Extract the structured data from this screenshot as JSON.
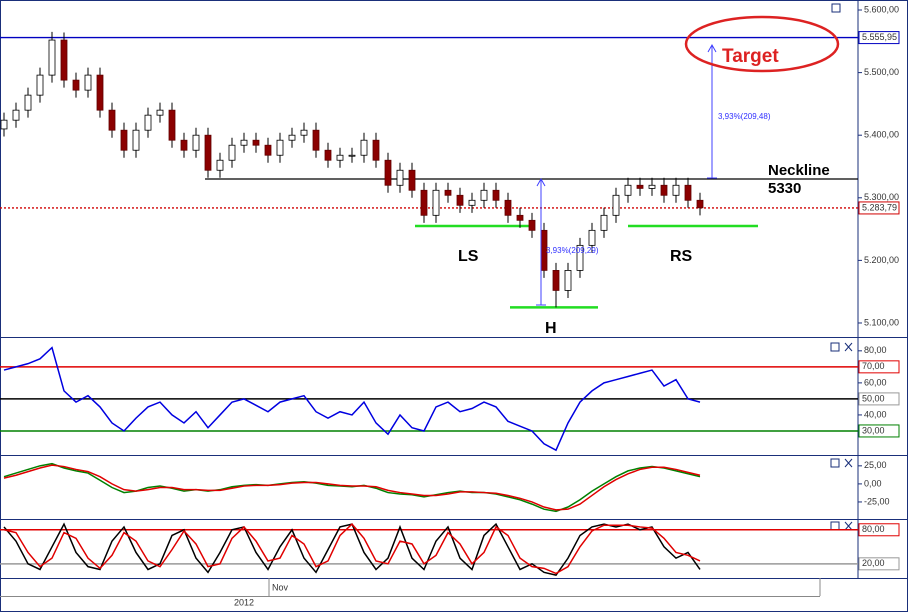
{
  "chart_data": [
    {
      "type": "candlestick",
      "open": [
        5410,
        5424,
        5440,
        5464,
        5496,
        5552,
        5488,
        5472,
        5496,
        5440,
        5408,
        5376,
        5408,
        5432,
        5440,
        5392,
        5376,
        5400,
        5344,
        5360,
        5384,
        5392,
        5384,
        5368,
        5392,
        5400,
        5408,
        5376,
        5360,
        5368,
        5368,
        5392,
        5360,
        5320,
        5344,
        5312,
        5272,
        5312,
        5304,
        5288,
        5296,
        5312,
        5296,
        5272,
        5264,
        5248,
        5184,
        5152,
        5184,
        5224,
        5248,
        5272,
        5304,
        5320,
        5315,
        5320,
        5304,
        5320,
        5296
      ],
      "high": [
        5436,
        5452,
        5476,
        5508,
        5565,
        5564,
        5500,
        5508,
        5508,
        5452,
        5420,
        5420,
        5444,
        5452,
        5452,
        5404,
        5412,
        5412,
        5372,
        5396,
        5404,
        5404,
        5396,
        5404,
        5412,
        5420,
        5420,
        5388,
        5380,
        5380,
        5404,
        5404,
        5372,
        5356,
        5356,
        5324,
        5324,
        5324,
        5316,
        5308,
        5324,
        5324,
        5308,
        5284,
        5276,
        5260,
        5196,
        5196,
        5236,
        5260,
        5284,
        5316,
        5332,
        5332,
        5332,
        5332,
        5332,
        5332,
        5308
      ],
      "low": [
        5398,
        5412,
        5428,
        5452,
        5484,
        5476,
        5460,
        5460,
        5428,
        5396,
        5364,
        5364,
        5396,
        5420,
        5380,
        5364,
        5364,
        5332,
        5332,
        5348,
        5372,
        5372,
        5356,
        5356,
        5380,
        5388,
        5364,
        5348,
        5348,
        5356,
        5356,
        5348,
        5308,
        5308,
        5300,
        5260,
        5260,
        5292,
        5276,
        5276,
        5284,
        5284,
        5260,
        5252,
        5236,
        5172,
        5125,
        5140,
        5172,
        5212,
        5236,
        5260,
        5292,
        5303,
        5303,
        5292,
        5292,
        5284,
        5272
      ],
      "close": [
        5424,
        5440,
        5464,
        5496,
        5552,
        5488,
        5472,
        5496,
        5440,
        5408,
        5376,
        5408,
        5432,
        5440,
        5392,
        5376,
        5400,
        5344,
        5360,
        5384,
        5392,
        5384,
        5368,
        5392,
        5400,
        5408,
        5376,
        5360,
        5368,
        5368,
        5392,
        5360,
        5320,
        5344,
        5312,
        5272,
        5312,
        5304,
        5288,
        5296,
        5312,
        5296,
        5272,
        5264,
        5248,
        5184,
        5152,
        5184,
        5224,
        5248,
        5272,
        5304,
        5320,
        5315,
        5320,
        5304,
        5320,
        5296,
        5284
      ],
      "ylim": [
        5077.6,
        5616
      ],
      "yticks": [
        {
          "value": 5600,
          "label": "5.600,00"
        },
        {
          "value": 5500,
          "label": "5.500,00"
        },
        {
          "value": 5400,
          "label": "5.400,00"
        },
        {
          "value": 5300,
          "label": "5.300,00"
        },
        {
          "value": 5200,
          "label": "5.200,00"
        },
        {
          "value": 5100,
          "label": "5.100,00"
        }
      ],
      "levels": [
        {
          "value": 5555.95,
          "label": "5.555,95",
          "color": "#0000c0"
        },
        {
          "value": 5283.79,
          "label": "5.283,79",
          "color": "#d00000"
        },
        {
          "value": 5330,
          "color": "#000000"
        },
        {
          "value": 5255,
          "color": "#22dd22"
        },
        {
          "value": 5125,
          "color": "#22dd22"
        },
        {
          "value": 5255,
          "color": "#22dd22"
        }
      ],
      "annotations": [
        "Target",
        "Neckline",
        "5330",
        "LS",
        "H",
        "RS",
        "3,93%(209,48)",
        "3,93%(209,29)"
      ]
    },
    {
      "type": "line",
      "ylim": [
        15,
        88
      ],
      "yticks": [
        {
          "value": 80,
          "label": "80,00"
        },
        {
          "value": 60,
          "label": "60,00"
        },
        {
          "value": 40,
          "label": "40,00"
        }
      ],
      "levels": [
        {
          "value": 70,
          "label": "70,00",
          "color": "#e00000"
        },
        {
          "value": 50,
          "label": "50,00",
          "color": "#000000"
        },
        {
          "value": 30,
          "label": "30,00",
          "color": "#008000"
        }
      ],
      "series": [
        {
          "color": "#0000e0",
          "values": [
            68,
            70,
            72,
            75,
            82,
            55,
            48,
            52,
            45,
            35,
            30,
            38,
            45,
            48,
            40,
            35,
            42,
            32,
            40,
            48,
            50,
            46,
            42,
            48,
            50,
            52,
            42,
            38,
            42,
            40,
            48,
            35,
            28,
            40,
            32,
            30,
            45,
            48,
            42,
            44,
            48,
            45,
            36,
            33,
            30,
            22,
            18,
            35,
            48,
            55,
            60,
            62,
            64,
            66,
            68,
            58,
            62,
            50,
            48
          ]
        }
      ]
    },
    {
      "type": "line",
      "ylim": [
        -48.6,
        40
      ],
      "yticks": [
        {
          "value": 25,
          "label": "25,00"
        },
        {
          "value": 0,
          "label": "0,00"
        },
        {
          "value": -25,
          "label": "-25,00"
        }
      ],
      "series": [
        {
          "color": "#008000",
          "values": [
            10,
            15,
            20,
            25,
            28,
            22,
            18,
            15,
            5,
            -5,
            -12,
            -10,
            -5,
            -3,
            -6,
            -10,
            -8,
            -10,
            -8,
            -4,
            -2,
            -1,
            -2,
            0,
            2,
            3,
            1,
            -2,
            -3,
            -4,
            -2,
            -6,
            -12,
            -14,
            -15,
            -18,
            -15,
            -12,
            -10,
            -12,
            -12,
            -14,
            -18,
            -22,
            -28,
            -35,
            -38,
            -32,
            -22,
            -10,
            0,
            10,
            18,
            22,
            24,
            22,
            18,
            14,
            10
          ]
        },
        {
          "color": "#e00000",
          "values": [
            8,
            12,
            17,
            22,
            26,
            24,
            20,
            17,
            10,
            0,
            -8,
            -10,
            -8,
            -5,
            -5,
            -8,
            -8,
            -9,
            -9,
            -6,
            -3,
            -2,
            -2,
            -1,
            1,
            2,
            2,
            0,
            -2,
            -3,
            -3,
            -4,
            -9,
            -12,
            -14,
            -16,
            -16,
            -14,
            -11,
            -11,
            -12,
            -13,
            -16,
            -20,
            -25,
            -32,
            -36,
            -35,
            -28,
            -16,
            -4,
            6,
            14,
            20,
            23,
            23,
            20,
            16,
            12
          ]
        }
      ]
    },
    {
      "type": "line",
      "ylim": [
        -5,
        99
      ],
      "levels": [
        {
          "value": 80,
          "label": "80,00",
          "color": "#e00000"
        },
        {
          "value": 20,
          "label": "20,00",
          "color": "#999999"
        }
      ],
      "series": [
        {
          "color": "#000000",
          "values": [
            85,
            60,
            20,
            10,
            50,
            90,
            40,
            15,
            10,
            60,
            85,
            40,
            10,
            20,
            70,
            80,
            30,
            5,
            40,
            80,
            85,
            40,
            10,
            50,
            80,
            30,
            5,
            45,
            85,
            90,
            40,
            10,
            30,
            85,
            30,
            10,
            60,
            85,
            30,
            10,
            70,
            90,
            50,
            10,
            20,
            5,
            0,
            30,
            70,
            85,
            90,
            85,
            90,
            80,
            85,
            50,
            30,
            40,
            10
          ]
        },
        {
          "color": "#e00000",
          "values": [
            80,
            75,
            40,
            15,
            30,
            75,
            65,
            30,
            12,
            35,
            75,
            60,
            25,
            15,
            45,
            78,
            55,
            15,
            20,
            65,
            85,
            60,
            25,
            30,
            70,
            55,
            15,
            25,
            70,
            90,
            65,
            25,
            20,
            60,
            55,
            20,
            35,
            75,
            55,
            20,
            40,
            85,
            70,
            30,
            15,
            12,
            3,
            15,
            50,
            78,
            88,
            88,
            88,
            85,
            83,
            65,
            40,
            35,
            25
          ]
        }
      ]
    }
  ],
  "time_axis": {
    "labels": [
      "Nov"
    ],
    "year": "2012"
  }
}
